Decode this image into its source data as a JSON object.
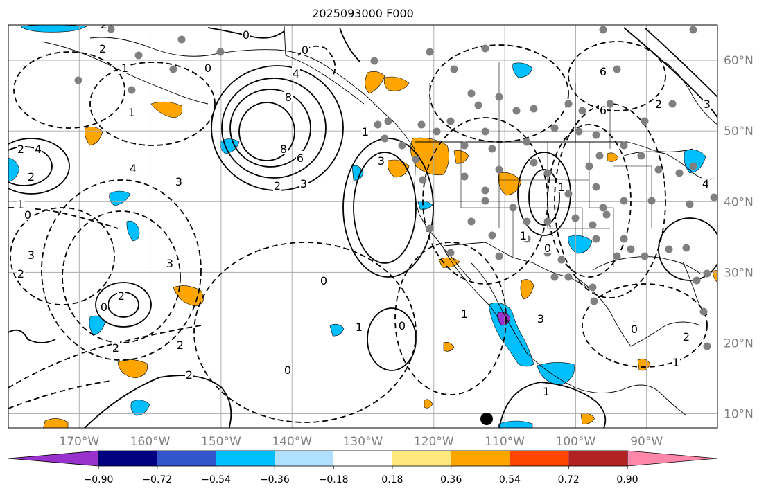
{
  "title": "2025093000 F000",
  "map": {
    "lon_range": [
      -180,
      -80
    ],
    "lat_range": [
      8,
      65
    ],
    "lon_ticks": [
      {
        "lon": -170,
        "label": "170°W"
      },
      {
        "lon": -160,
        "label": "160°W"
      },
      {
        "lon": -150,
        "label": "150°W"
      },
      {
        "lon": -140,
        "label": "140°W"
      },
      {
        "lon": -130,
        "label": "130°W"
      },
      {
        "lon": -120,
        "label": "120°W"
      },
      {
        "lon": -110,
        "label": "110°W"
      },
      {
        "lon": -100,
        "label": "100°W"
      },
      {
        "lon": -90,
        "label": "90°W"
      }
    ],
    "lat_ticks": [
      {
        "lat": 60,
        "label": "60°N"
      },
      {
        "lat": 50,
        "label": "50°N"
      },
      {
        "lat": 40,
        "label": "40°N"
      },
      {
        "lat": 30,
        "label": "30°N"
      },
      {
        "lat": 20,
        "label": "20°N"
      },
      {
        "lat": 10,
        "label": "10°N"
      }
    ],
    "gridlines": true,
    "contour_line_color": "#000000",
    "station_dot_color": "#808080"
  },
  "contour_labels": [
    "0",
    "2",
    "1",
    "0",
    "6",
    "4",
    "8",
    "8",
    "6",
    "3",
    "2",
    "1",
    "4",
    "3",
    "2",
    "1",
    "2",
    "3",
    "0",
    "1",
    "0",
    "1",
    "3",
    "2",
    "0",
    "2",
    "2",
    "1",
    "0",
    "1",
    "2",
    "3",
    "4",
    "6",
    "4",
    "2",
    "3",
    "0",
    "1",
    "2",
    "0",
    "0",
    "1",
    "2",
    "1",
    "0",
    "3",
    "2"
  ],
  "colorbar": {
    "colors": [
      "#9932cc",
      "#000080",
      "#3355cc",
      "#00bfff",
      "#b0e0ff",
      "#ffffff",
      "#ffe97f",
      "#ffa500",
      "#ff4500",
      "#b22222",
      "#ff88aa"
    ],
    "ticks": [
      "−0.90",
      "−0.72",
      "−0.54",
      "−0.36",
      "−0.18",
      "0.18",
      "0.36",
      "0.54",
      "0.72",
      "0.90"
    ],
    "extend": "both"
  }
}
